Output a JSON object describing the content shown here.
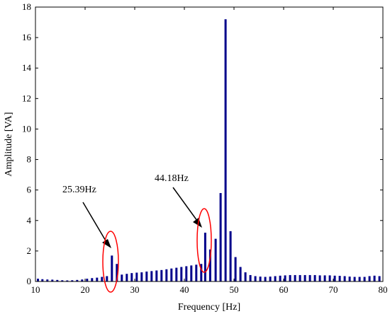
{
  "chart_data": {
    "type": "bar",
    "title": "",
    "xlabel": "Frequency [Hz]",
    "ylabel": "Amplitude [VA]",
    "xlim": [
      10,
      80
    ],
    "ylim": [
      0,
      18
    ],
    "xticks": [
      10,
      20,
      30,
      40,
      50,
      60,
      70,
      80
    ],
    "yticks": [
      0,
      2,
      4,
      6,
      8,
      10,
      12,
      14,
      16,
      18
    ],
    "grid": false,
    "bar_color": "#00008b",
    "x": [
      10.5,
      11.4,
      12.4,
      13.4,
      14.4,
      15.4,
      16.4,
      17.4,
      18.4,
      19.4,
      20.4,
      21.4,
      22.4,
      23.4,
      24.4,
      25.4,
      26.4,
      27.4,
      28.4,
      29.4,
      30.4,
      31.4,
      32.4,
      33.4,
      34.4,
      35.4,
      36.4,
      37.4,
      38.4,
      39.4,
      40.4,
      41.4,
      42.4,
      43.4,
      44.2,
      45.2,
      46.3,
      47.3,
      48.3,
      49.3,
      50.3,
      51.3,
      52.3,
      53.3,
      54.3,
      55.3,
      56.3,
      57.3,
      58.3,
      59.3,
      60.3,
      61.3,
      62.3,
      63.3,
      64.3,
      65.3,
      66.3,
      67.3,
      68.3,
      69.3,
      70.3,
      71.3,
      72.3,
      73.3,
      74.3,
      75.3,
      76.3,
      77.3,
      78.3,
      79.3
    ],
    "values": [
      0.18,
      0.15,
      0.13,
      0.12,
      0.1,
      0.08,
      0.07,
      0.08,
      0.1,
      0.13,
      0.18,
      0.22,
      0.25,
      0.3,
      0.35,
      1.7,
      1.15,
      0.45,
      0.5,
      0.55,
      0.58,
      0.6,
      0.65,
      0.68,
      0.72,
      0.75,
      0.8,
      0.85,
      0.9,
      0.95,
      1.0,
      1.05,
      1.1,
      1.15,
      3.2,
      2.1,
      2.8,
      5.8,
      17.2,
      3.3,
      1.6,
      0.95,
      0.6,
      0.42,
      0.35,
      0.32,
      0.3,
      0.32,
      0.35,
      0.38,
      0.4,
      0.42,
      0.42,
      0.42,
      0.42,
      0.42,
      0.42,
      0.4,
      0.4,
      0.4,
      0.38,
      0.37,
      0.35,
      0.32,
      0.3,
      0.3,
      0.3,
      0.35,
      0.38,
      0.35
    ],
    "annotations": [
      {
        "text": "25.39Hz",
        "x": 25.39
      },
      {
        "text": "44.18Hz",
        "x": 44.18
      }
    ],
    "annotation_color": "#ff0000"
  }
}
